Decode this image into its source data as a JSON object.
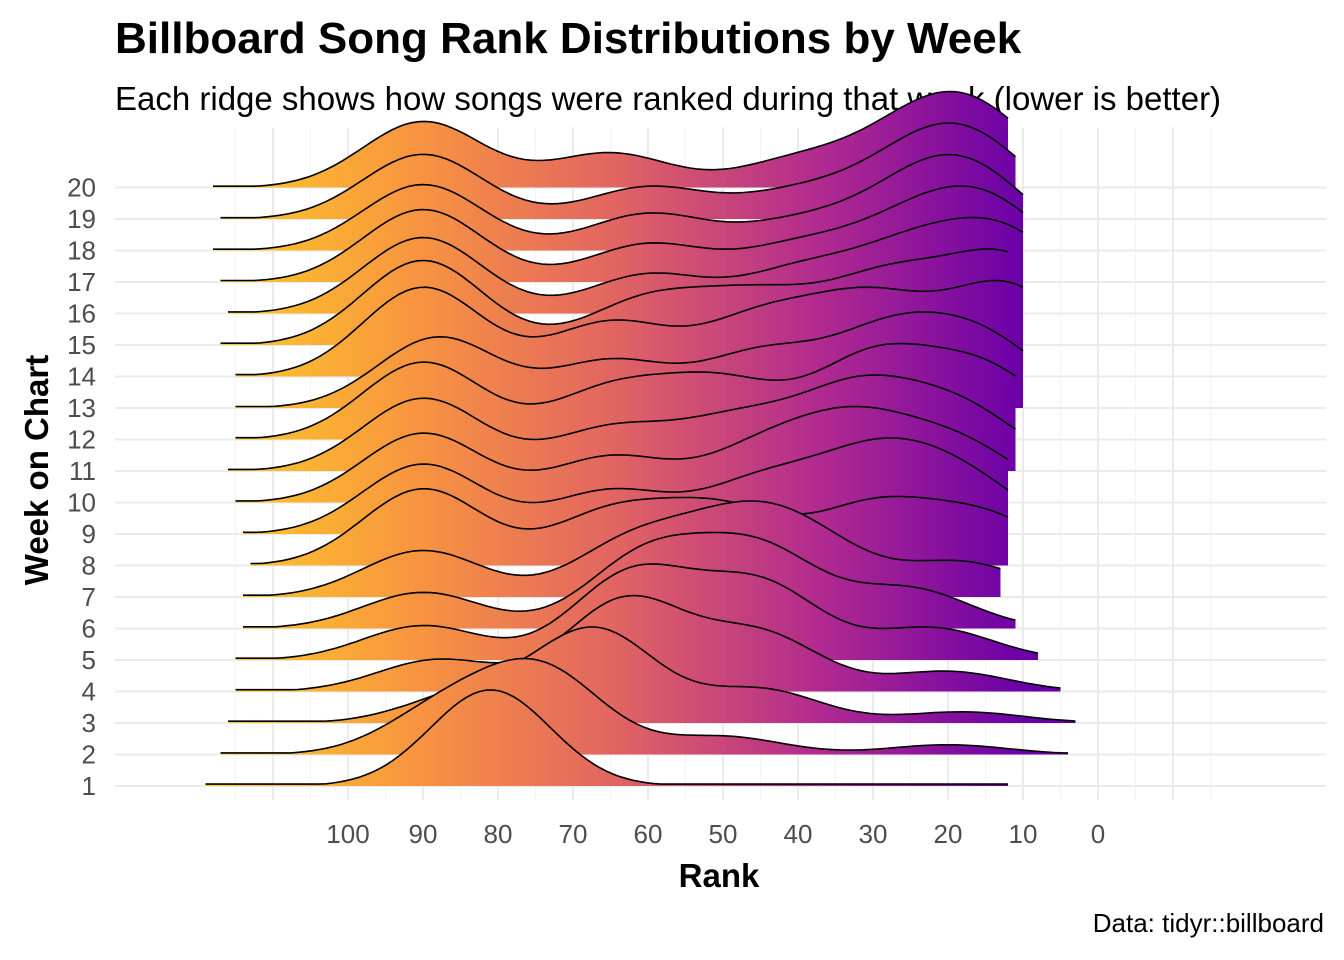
{
  "chart_data": {
    "type": "ridgeline",
    "title": "Billboard Song Rank Distributions by Week",
    "subtitle": "Each ridge shows how songs were ranked during that week (lower is better)",
    "caption": "Data: tidyr::billboard",
    "xlabel": "Rank",
    "ylabel": "Week on Chart",
    "x_axis_reversed": true,
    "xlim": [
      -10,
      110
    ],
    "x_ticks": [
      100,
      90,
      80,
      70,
      60,
      50,
      40,
      30,
      20,
      10,
      0
    ],
    "fill_gradient": "plasma (yellow at high rank values to purple at low rank values)",
    "gradient_colors": [
      "#fcce25",
      "#f89540",
      "#e16462",
      "#b12a90",
      "#6a00a8",
      "#4c02a1"
    ],
    "grid": true,
    "series": [
      {
        "week": 1,
        "range": [
          119,
          12
        ],
        "peaks": [
          [
            81,
            1.0
          ]
        ]
      },
      {
        "week": 2,
        "range": [
          117,
          4
        ],
        "peaks": [
          [
            87,
            0.55
          ],
          [
            74,
            1.0
          ],
          [
            50,
            0.22
          ],
          [
            20,
            0.12
          ]
        ]
      },
      {
        "week": 3,
        "range": [
          116,
          3
        ],
        "peaks": [
          [
            84,
            0.32
          ],
          [
            67,
            1.0
          ],
          [
            45,
            0.36
          ],
          [
            18,
            0.12
          ]
        ]
      },
      {
        "week": 4,
        "range": [
          115,
          5
        ],
        "peaks": [
          [
            88,
            0.35
          ],
          [
            63,
            1.0
          ],
          [
            45,
            0.62
          ],
          [
            20,
            0.22
          ]
        ]
      },
      {
        "week": 5,
        "range": [
          115,
          8
        ],
        "peaks": [
          [
            90,
            0.38
          ],
          [
            62,
            0.95
          ],
          [
            45,
            0.82
          ],
          [
            22,
            0.35
          ]
        ]
      },
      {
        "week": 6,
        "range": [
          114,
          11
        ],
        "peaks": [
          [
            90,
            0.42
          ],
          [
            60,
            0.85
          ],
          [
            45,
            0.88
          ],
          [
            25,
            0.45
          ]
        ]
      },
      {
        "week": 7,
        "range": [
          114,
          13
        ],
        "peaks": [
          [
            90,
            0.52
          ],
          [
            62,
            0.6
          ],
          [
            48,
            0.7
          ],
          [
            38,
            0.52
          ],
          [
            18,
            0.38
          ]
        ]
      },
      {
        "week": 8,
        "range": [
          113,
          12
        ],
        "peaks": [
          [
            90,
            0.78
          ],
          [
            65,
            0.52
          ],
          [
            50,
            0.55
          ],
          [
            30,
            0.58
          ],
          [
            15,
            0.48
          ]
        ]
      },
      {
        "week": 9,
        "range": [
          114,
          12
        ],
        "peaks": [
          [
            90,
            0.82
          ],
          [
            65,
            0.5
          ],
          [
            45,
            0.58
          ],
          [
            30,
            0.82
          ],
          [
            18,
            0.6
          ]
        ]
      },
      {
        "week": 10,
        "range": [
          115,
          12
        ],
        "peaks": [
          [
            90,
            0.85
          ],
          [
            65,
            0.55
          ],
          [
            45,
            0.6
          ],
          [
            32,
            0.88
          ],
          [
            18,
            0.65
          ]
        ]
      },
      {
        "week": 11,
        "range": [
          116,
          11
        ],
        "peaks": [
          [
            90,
            0.88
          ],
          [
            65,
            0.5
          ],
          [
            48,
            0.58
          ],
          [
            32,
            0.92
          ],
          [
            18,
            0.7
          ]
        ]
      },
      {
        "week": 12,
        "range": [
          115,
          11
        ],
        "peaks": [
          [
            90,
            0.88
          ],
          [
            65,
            0.55
          ],
          [
            50,
            0.62
          ],
          [
            30,
            0.9
          ],
          [
            15,
            0.76
          ]
        ]
      },
      {
        "week": 13,
        "range": [
          115,
          10
        ],
        "peaks": [
          [
            88,
            0.92
          ],
          [
            65,
            0.6
          ],
          [
            45,
            0.68
          ],
          [
            28,
            0.9
          ],
          [
            15,
            0.82
          ]
        ]
      },
      {
        "week": 14,
        "range": [
          115,
          10
        ],
        "peaks": [
          [
            90,
            0.92
          ],
          [
            65,
            0.55
          ],
          [
            45,
            0.58
          ],
          [
            30,
            0.75
          ],
          [
            12,
            0.92
          ]
        ]
      },
      {
        "week": 15,
        "range": [
          117,
          12
        ],
        "peaks": [
          [
            90,
            0.92
          ],
          [
            60,
            0.48
          ],
          [
            45,
            0.5
          ],
          [
            28,
            0.7
          ],
          [
            12,
            0.92
          ]
        ]
      },
      {
        "week": 16,
        "range": [
          116,
          10
        ],
        "peaks": [
          [
            90,
            0.95
          ],
          [
            60,
            0.48
          ],
          [
            40,
            0.5
          ],
          [
            25,
            0.72
          ],
          [
            12,
            0.92
          ]
        ]
      },
      {
        "week": 17,
        "range": [
          117,
          10
        ],
        "peaks": [
          [
            90,
            0.97
          ],
          [
            60,
            0.5
          ],
          [
            40,
            0.45
          ],
          [
            25,
            0.68
          ],
          [
            14,
            0.92
          ]
        ]
      },
      {
        "week": 18,
        "range": [
          118,
          10
        ],
        "peaks": [
          [
            90,
            1.0
          ],
          [
            60,
            0.55
          ],
          [
            40,
            0.4
          ],
          [
            25,
            0.72
          ],
          [
            16,
            0.96
          ]
        ]
      },
      {
        "week": 19,
        "range": [
          117,
          11
        ],
        "peaks": [
          [
            90,
            0.98
          ],
          [
            60,
            0.48
          ],
          [
            40,
            0.38
          ],
          [
            25,
            0.72
          ],
          [
            16,
            0.96
          ]
        ]
      },
      {
        "week": 20,
        "range": [
          118,
          12
        ],
        "peaks": [
          [
            90,
            1.0
          ],
          [
            65,
            0.52
          ],
          [
            40,
            0.4
          ],
          [
            25,
            0.7
          ],
          [
            16,
            0.98
          ]
        ]
      }
    ]
  }
}
